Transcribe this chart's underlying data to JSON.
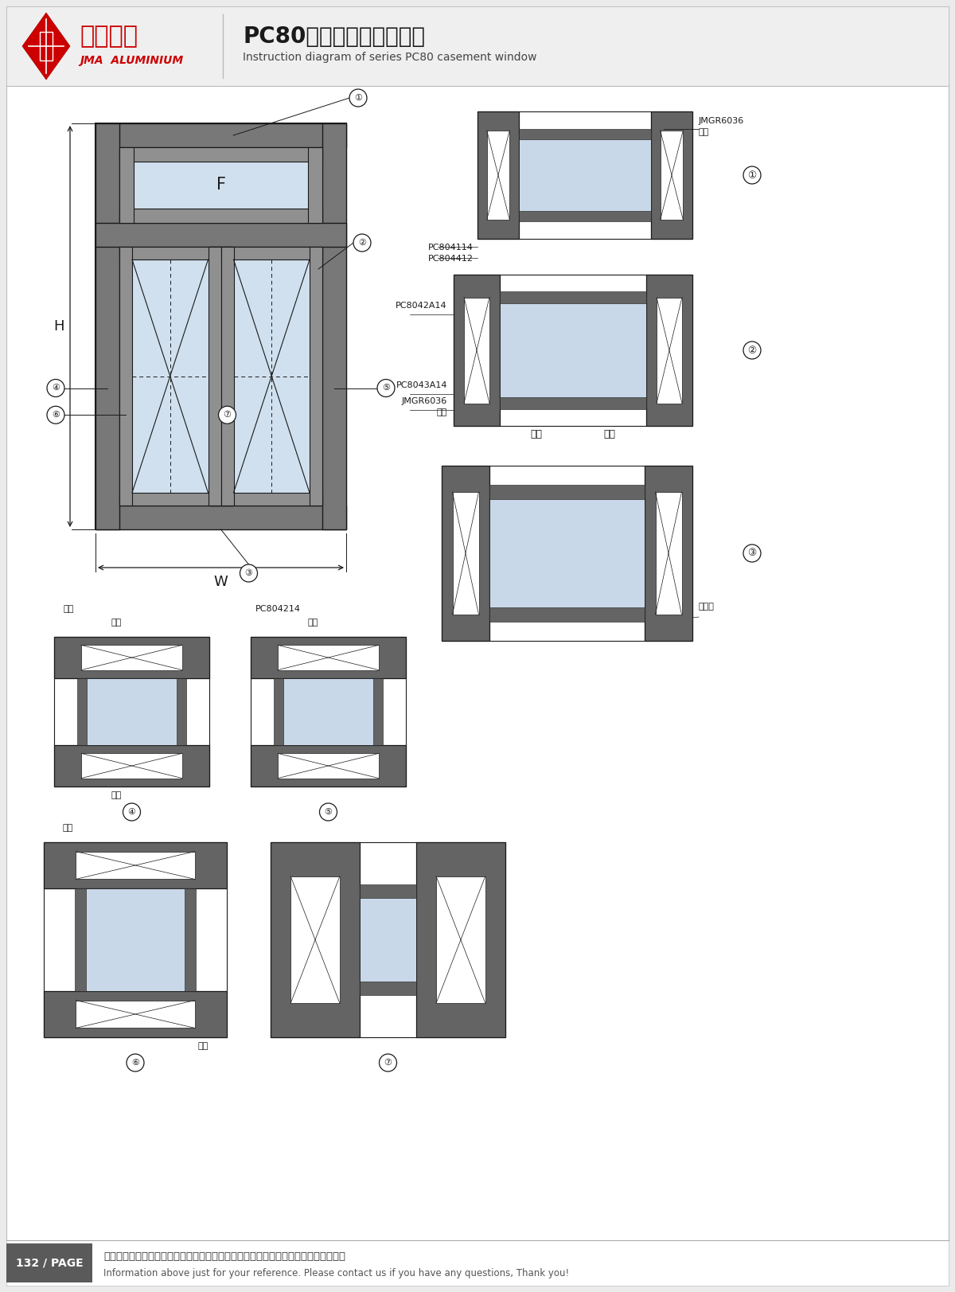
{
  "title_cn": "PC80系列内平开窗结构图",
  "title_en": "Instruction diagram of series PC80 casement window",
  "company_cn": "坚美铝业",
  "company_en": "JMA  ALUMINIUM",
  "page": "132 / PAGE",
  "footer_cn": "图中所示型材截面、装配、编号、尺寸及重量仅供参考。如有疑问，请向本公司查询。",
  "footer_en": "Information above just for your reference. Please contact us if you have any questions, Thank you!",
  "bg_color": "#ebebeb",
  "white": "#ffffff",
  "dc": "#1a1a1a",
  "cs_fill": "#646464",
  "cs_glass": "#c8d8e8",
  "cs_edge": "#1a1a1a",
  "frame_color": "#787878",
  "inner_frame": "#909090",
  "glass_blue": "#d0e0ee"
}
